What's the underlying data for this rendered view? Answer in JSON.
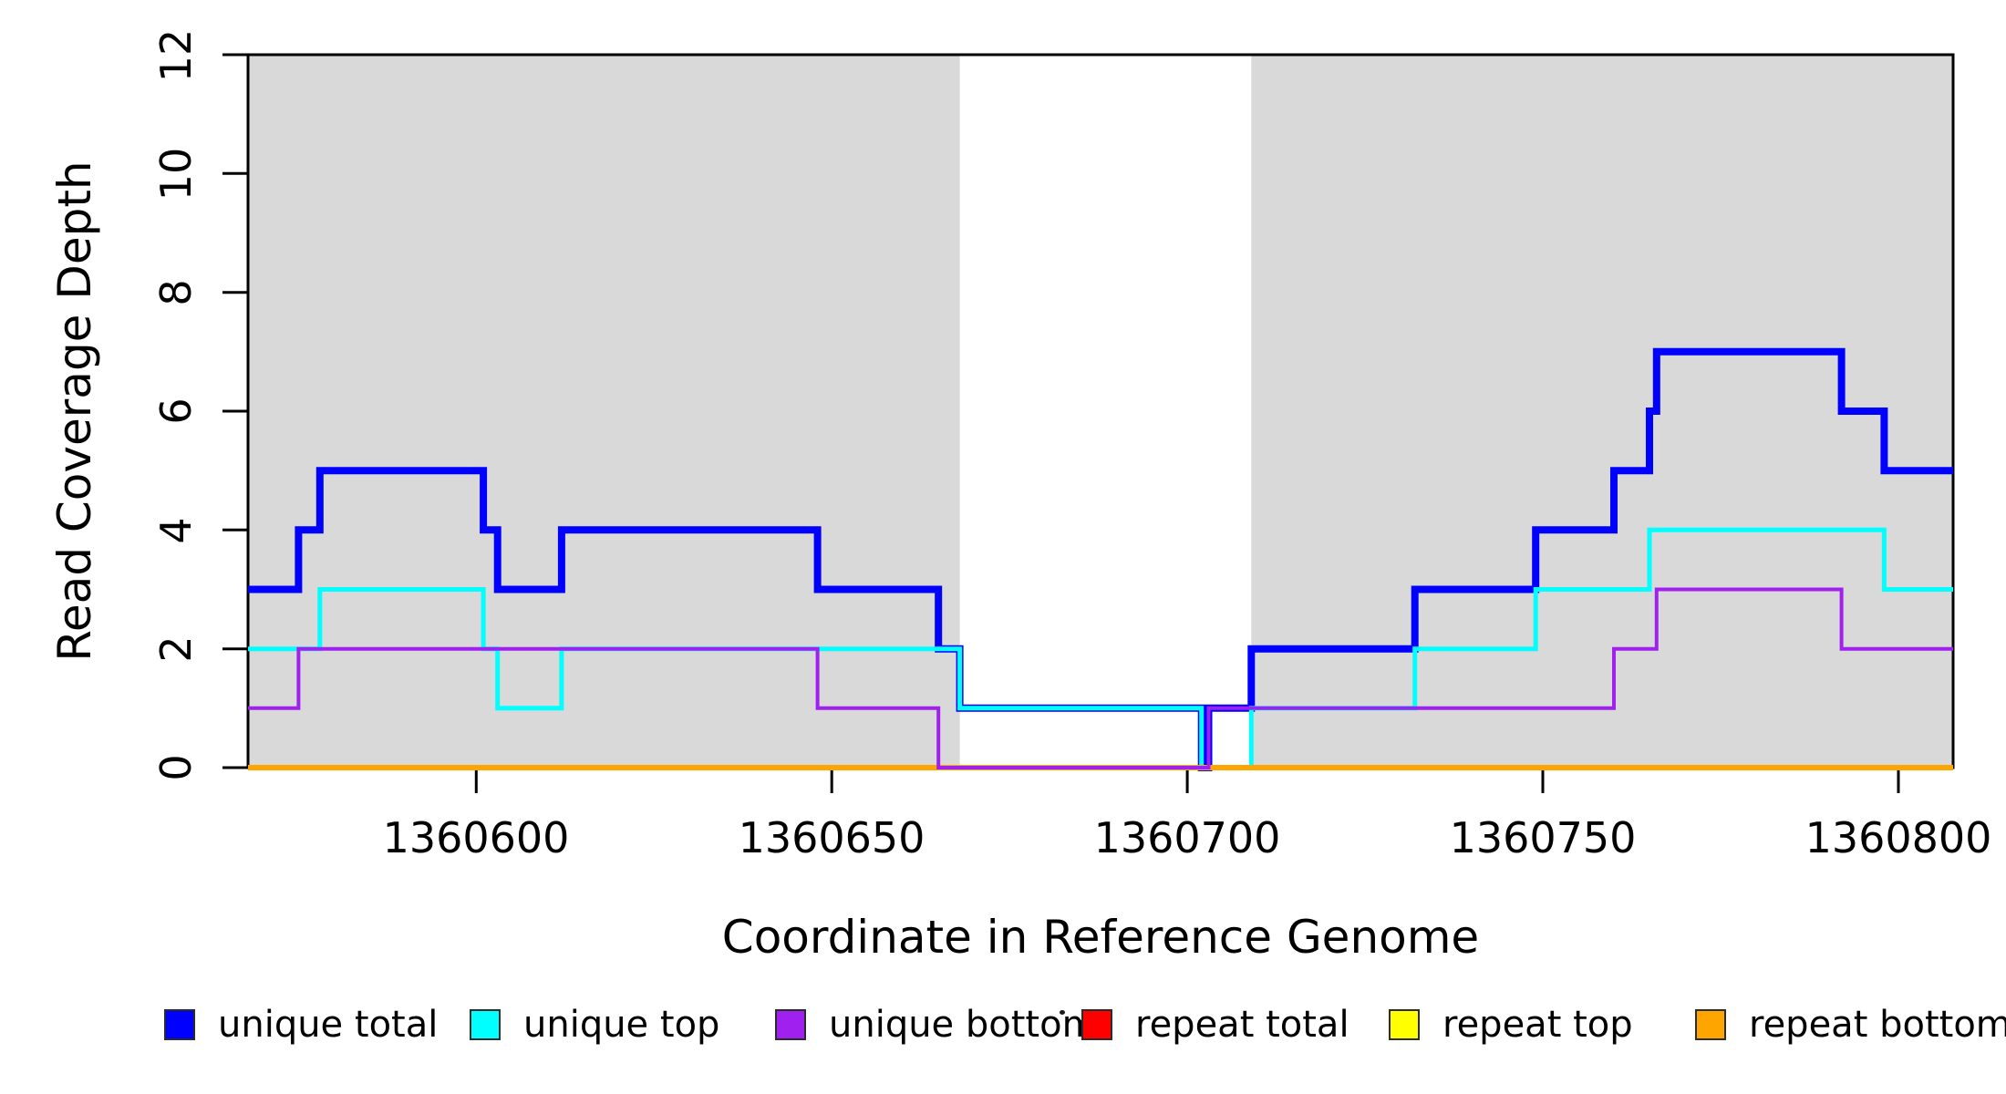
{
  "axes": {
    "x": {
      "title": "Coordinate in Reference Genome",
      "ticks": [
        "1360600",
        "1360650",
        "1360700",
        "1360750",
        "1360800"
      ]
    },
    "y": {
      "title": "Read Coverage Depth",
      "ticks": [
        "0",
        "2",
        "4",
        "6",
        "8",
        "10",
        "12"
      ]
    }
  },
  "chart_data": {
    "type": "line",
    "subtype": "step",
    "title": "",
    "xlabel": "Coordinate in Reference Genome",
    "ylabel": "Read Coverage Depth",
    "xlim": [
      1360567.9,
      1360807.7
    ],
    "ylim": [
      0,
      12
    ],
    "x_ticks": [
      1360600,
      1360650,
      1360700,
      1360750,
      1360800
    ],
    "y_ticks": [
      0,
      2,
      4,
      6,
      8,
      10,
      12
    ],
    "grid": false,
    "legend_position": "bottom",
    "background_color": "#ffffff",
    "box_color": "#000000",
    "shaded_regions": [
      {
        "name": "left-highlight-region",
        "from": 1360567.9,
        "to": 1360668,
        "color": "#d9d9d9"
      },
      {
        "name": "right-highlight-region",
        "from": 1360709,
        "to": 1360807.7,
        "color": "#d9d9d9"
      }
    ],
    "series": [
      {
        "name": "unique total",
        "color": "#0000ff",
        "width": 8,
        "steps": [
          [
            1360567.9,
            3
          ],
          [
            1360575,
            4
          ],
          [
            1360578,
            5
          ],
          [
            1360601,
            4
          ],
          [
            1360603,
            3
          ],
          [
            1360612,
            4
          ],
          [
            1360648,
            3
          ],
          [
            1360665,
            2
          ],
          [
            1360668,
            1
          ],
          [
            1360702,
            0
          ],
          [
            1360703,
            1
          ],
          [
            1360709,
            2
          ],
          [
            1360732,
            3
          ],
          [
            1360749,
            4
          ],
          [
            1360760,
            5
          ],
          [
            1360765,
            6
          ],
          [
            1360766,
            7
          ],
          [
            1360792,
            6
          ],
          [
            1360798,
            5
          ]
        ]
      },
      {
        "name": "unique top",
        "color": "#00ffff",
        "width": 5,
        "steps": [
          [
            1360567.9,
            2
          ],
          [
            1360578,
            3
          ],
          [
            1360601,
            2
          ],
          [
            1360603,
            1
          ],
          [
            1360612,
            2
          ],
          [
            1360668,
            1
          ],
          [
            1360702,
            0
          ],
          [
            1360709,
            1
          ],
          [
            1360732,
            2
          ],
          [
            1360749,
            3
          ],
          [
            1360765,
            4
          ],
          [
            1360798,
            3
          ]
        ]
      },
      {
        "name": "repeat total",
        "color": "#ff0000",
        "width": 4,
        "steps": [
          [
            1360567.9,
            0
          ]
        ]
      },
      {
        "name": "repeat top",
        "color": "#ffff00",
        "width": 4,
        "steps": [
          [
            1360567.9,
            0
          ]
        ]
      },
      {
        "name": "repeat bottom",
        "color": "#ffa500",
        "width": 6,
        "steps": [
          [
            1360567.9,
            0
          ]
        ]
      },
      {
        "name": "unique bottom",
        "color": "#a020f0",
        "width": 4,
        "steps": [
          [
            1360567.9,
            1
          ],
          [
            1360575,
            2
          ],
          [
            1360648,
            1
          ],
          [
            1360665,
            0
          ],
          [
            1360703,
            1
          ],
          [
            1360760,
            2
          ],
          [
            1360766,
            3
          ],
          [
            1360792,
            2
          ]
        ]
      }
    ]
  },
  "legend": {
    "items": [
      {
        "label": "unique total",
        "color": "#0000ff"
      },
      {
        "label": "unique top",
        "color": "#00ffff"
      },
      {
        "label": "unique bottom",
        "color": "#a020f0"
      },
      {
        "label": "repeat total",
        "color": "#ff0000"
      },
      {
        "label": "repeat top",
        "color": "#ffff00"
      },
      {
        "label": "repeat bottom",
        "color": "#ffa500"
      }
    ]
  }
}
